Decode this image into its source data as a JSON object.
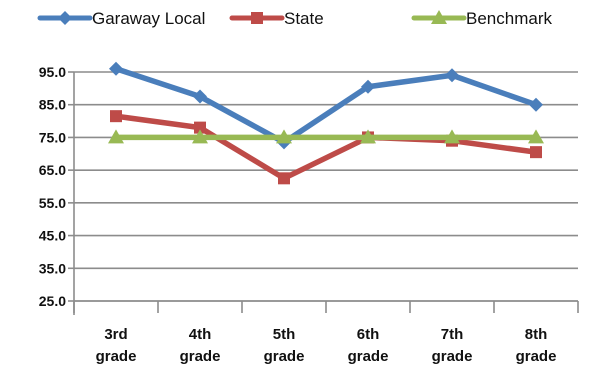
{
  "chart_data": {
    "type": "line",
    "title": "",
    "xlabel": "",
    "ylabel": "",
    "categories": [
      [
        "3rd",
        "grade"
      ],
      [
        "4th",
        "grade"
      ],
      [
        "5th",
        "grade"
      ],
      [
        "6th",
        "grade"
      ],
      [
        "7th",
        "grade"
      ],
      [
        "8th",
        "grade"
      ]
    ],
    "ylim": [
      25,
      95
    ],
    "yticks": [
      "95.0",
      "85.0",
      "75.0",
      "65.0",
      "55.0",
      "45.0",
      "35.0",
      "25.0"
    ],
    "grid": true,
    "legend_position": "top",
    "series": [
      {
        "name": "Garaway Local",
        "color": "#4a7ebb",
        "marker": "diamond",
        "values": [
          96,
          87.5,
          73.5,
          90.5,
          94,
          85
        ]
      },
      {
        "name": "State",
        "color": "#be4b48",
        "marker": "square",
        "values": [
          81.5,
          78,
          62.5,
          75,
          74,
          70.5
        ]
      },
      {
        "name": "Benchmark",
        "color": "#98b954",
        "marker": "triangle",
        "values": [
          75,
          75,
          75,
          75,
          75,
          75
        ]
      }
    ]
  }
}
